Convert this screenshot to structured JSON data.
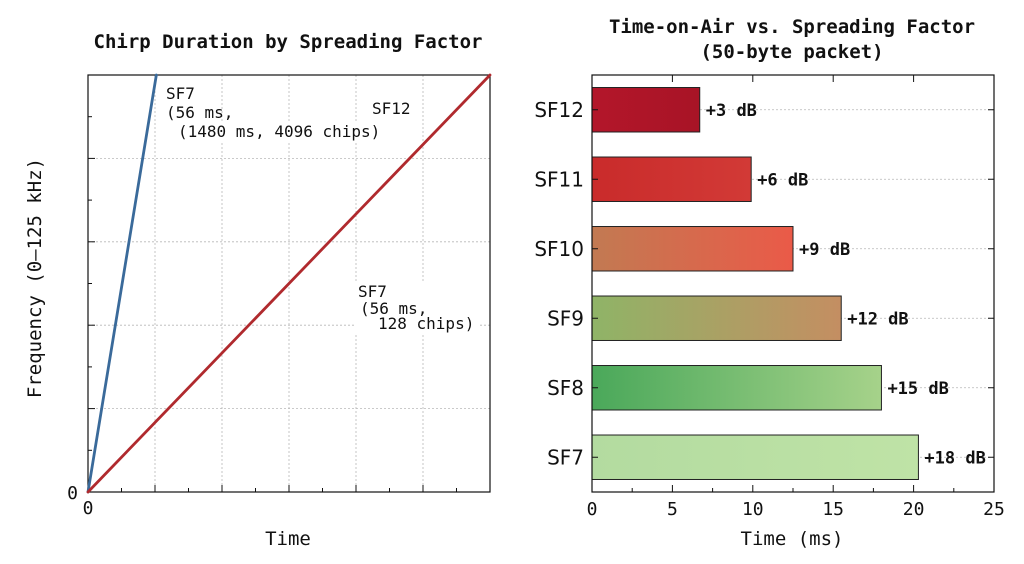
{
  "left_chart": {
    "title": "Chirp Duration by Spreading Factor",
    "xlabel": "Time",
    "ylabel": "Frequency (0–125 kHz)",
    "x_tick_label": "0",
    "y_tick_label": "0",
    "annotations": [
      {
        "lines": [
          "SF7",
          "(56 ms,"
        ]
      },
      {
        "lines": [
          "SF12",
          "(1480 ms, 4096 chips)"
        ]
      },
      {
        "lines": [
          "SF7",
          "(56 ms,",
          "128 chips)"
        ]
      }
    ]
  },
  "chart_data": [
    {
      "type": "line",
      "title": "Chirp Duration by Spreading Factor",
      "xlabel": "Time",
      "ylabel": "Frequency (0–125 kHz)",
      "grid": true,
      "series": [
        {
          "name": "SF7",
          "color": "#3a6a9a",
          "x": [
            0,
            0.17
          ],
          "y": [
            0,
            1
          ]
        },
        {
          "name": "SF12",
          "color": "#b02a2e",
          "x": [
            0,
            1
          ],
          "y": [
            0,
            1
          ]
        }
      ]
    },
    {
      "type": "bar",
      "orientation": "horizontal",
      "title": "Time-on-Air vs. Spreading Factor\n(50-byte packet)",
      "xlabel": "Time (ms)",
      "xlim": [
        0,
        25
      ],
      "x_ticks": [
        "0",
        "5",
        "10",
        "15",
        "20",
        "25"
      ],
      "categories": [
        "SF12",
        "SF11",
        "SF10",
        "SF9",
        "SF8",
        "SF7"
      ],
      "values": [
        6.7,
        9.9,
        12.5,
        15.5,
        18.0,
        20.3
      ],
      "data_labels": [
        "+3 dB",
        "+6 dB",
        "+9 dB",
        "+12 dB",
        "+15 dB",
        "+18 dB"
      ],
      "colors": [
        "#b3162a",
        "#cc3030",
        "#d9604a",
        "#a9a262",
        "#6cb96a",
        "#b5dca0"
      ],
      "grid": true
    }
  ]
}
